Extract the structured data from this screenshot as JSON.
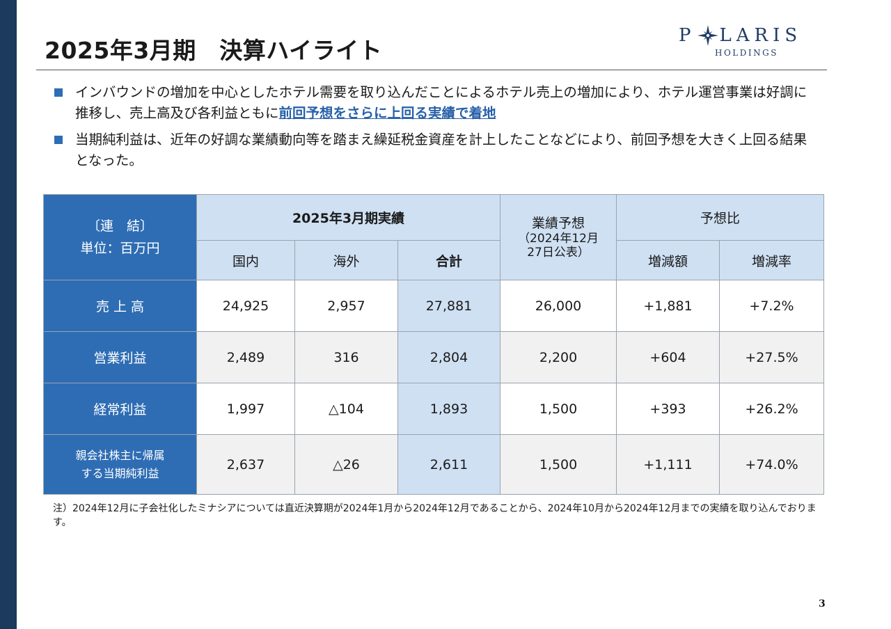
{
  "header": {
    "title": "2025年3月期　決算ハイライト",
    "logo": {
      "main_left": "P",
      "main_right": "LARIS",
      "sub": "HOLDINGS"
    }
  },
  "bullets": [
    {
      "text": "インバウンドの増加を中心としたホテル需要を取り込んだことによるホテル売上の増加により、ホテル運営事業は好調に推移し、売上高及び各利益ともに",
      "highlight": "前回予想をさらに上回る実績で着地"
    },
    {
      "text": "当期純利益は、近年の好調な業績動向等を踏まえ繰延税金資産を計上したことなどにより、前回予想を大きく上回る結果となった。",
      "highlight": ""
    }
  ],
  "table": {
    "corner_line1": "〔連　結〕",
    "corner_line2": "単位：百万円",
    "group_actual": "2025年3月期実績",
    "col_domestic": "国内",
    "col_overseas": "海外",
    "col_total": "合計",
    "forecast_line1": "業績予想",
    "forecast_line2": "（2024年12月",
    "forecast_line3": "27日公表）",
    "group_compare": "予想比",
    "col_diff": "増減額",
    "col_rate": "増減率",
    "rows": [
      {
        "label": "売 上 高",
        "label2": "",
        "domestic": "24,925",
        "overseas": "2,957",
        "total": "27,881",
        "forecast": "26,000",
        "diff": "+1,881",
        "rate": "+7.2%"
      },
      {
        "label": "営業利益",
        "label2": "",
        "domestic": "2,489",
        "overseas": "316",
        "total": "2,804",
        "forecast": "2,200",
        "diff": "+604",
        "rate": "+27.5%"
      },
      {
        "label": "経常利益",
        "label2": "",
        "domestic": "1,997",
        "overseas": "△104",
        "total": "1,893",
        "forecast": "1,500",
        "diff": "+393",
        "rate": "+26.2%"
      },
      {
        "label": "親会社株主に帰属",
        "label2": "する当期純利益",
        "domestic": "2,637",
        "overseas": "△26",
        "total": "2,611",
        "forecast": "1,500",
        "diff": "+1,111",
        "rate": "+74.0%"
      }
    ]
  },
  "footnote": "注）2024年12月に子会社化したミナシアについては直近決算期が2024年1月から2024年12月であることから、2024年10月から2024年12月までの実績を取り込んでおります。",
  "page_number": "3",
  "colors": {
    "navy": "#1b3a5c",
    "accent_blue": "#2e6db4",
    "light_blue": "#cfe0f3",
    "logo": "#1f3b66"
  }
}
